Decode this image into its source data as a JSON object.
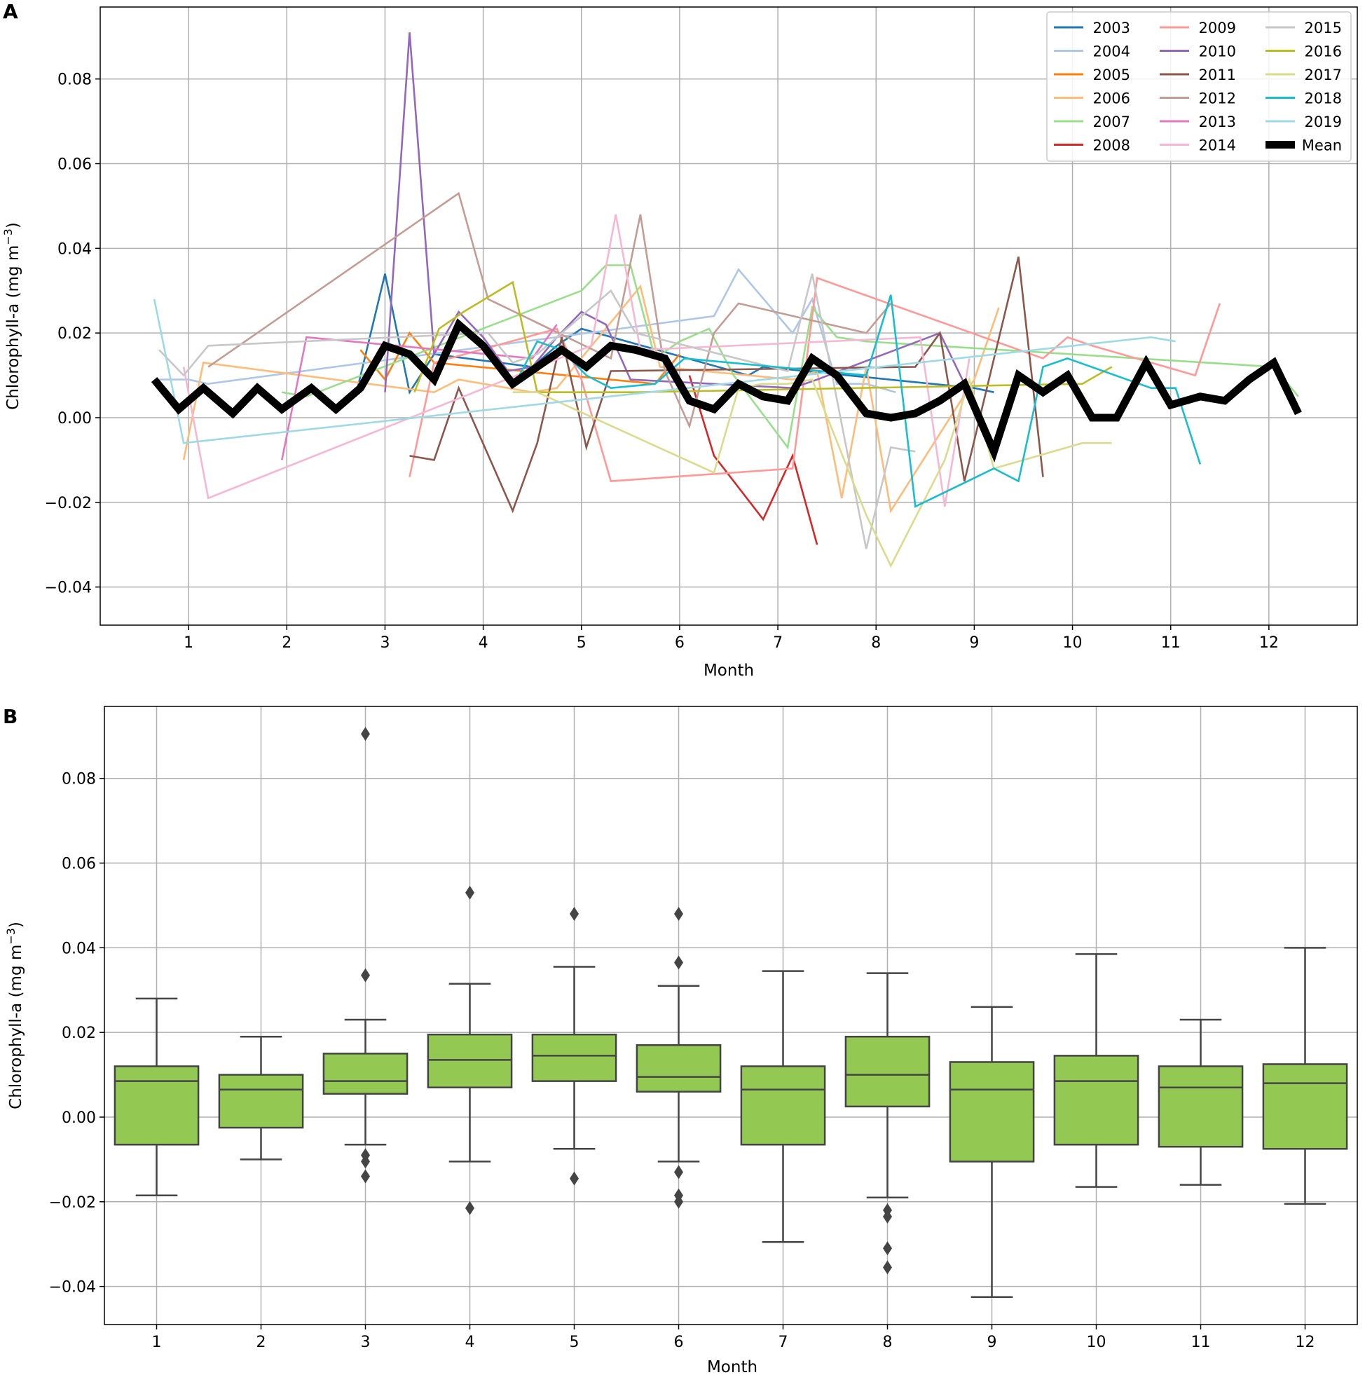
{
  "chart_data": [
    {
      "panel": "A",
      "type": "line",
      "xlabel": "Month",
      "ylabel": "Chlorophyll-a (mg m",
      "ylabel_sup": "−3",
      "ylabel_close": ")",
      "xlim": [
        0.1,
        12.9
      ],
      "ylim": [
        -0.049,
        0.097
      ],
      "xticks": [
        1,
        2,
        3,
        4,
        5,
        6,
        7,
        8,
        9,
        10,
        11,
        12
      ],
      "xtick_labels": [
        "1",
        "2",
        "3",
        "4",
        "5",
        "6",
        "7",
        "8",
        "9",
        "10",
        "11",
        "12"
      ],
      "yticks": [
        -0.04,
        -0.02,
        0.0,
        0.02,
        0.04,
        0.06,
        0.08
      ],
      "ytick_labels": [
        "−0.04",
        "−0.02",
        "0.00",
        "0.02",
        "0.04",
        "0.06",
        "0.08"
      ],
      "grid": true,
      "legend_position": "top-right",
      "legend_columns": 3,
      "series": [
        {
          "name": "2003",
          "color": "#1f77b4",
          "x": [
            2.7,
            3.0,
            3.25,
            3.5,
            4.5,
            4.75,
            5.0,
            6.7,
            6.85,
            9.0,
            9.2
          ],
          "y": [
            0.005,
            0.034,
            0.006,
            0.015,
            0.012,
            0.017,
            0.021,
            0.01,
            0.012,
            0.007,
            0.006
          ]
        },
        {
          "name": "2004",
          "color": "#aec7e8",
          "x": [
            0.7,
            1.0,
            1.2,
            6.35,
            6.6,
            7.15,
            7.35,
            7.6,
            7.9,
            8.2
          ],
          "y": [
            0.009,
            0.009,
            0.008,
            0.024,
            0.035,
            0.02,
            0.028,
            0.008,
            0.008,
            0.006
          ]
        },
        {
          "name": "2005",
          "color": "#ff7f0e",
          "x": [
            2.75,
            3.0,
            3.25,
            3.5,
            5.75,
            6.0
          ],
          "y": [
            0.016,
            0.009,
            0.02,
            0.013,
            0.008,
            0.015
          ]
        },
        {
          "name": "2006",
          "color": "#ffbb78",
          "x": [
            0.95,
            1.15,
            3.5,
            3.75,
            4.5,
            4.75,
            5.6,
            5.8,
            7.15,
            7.4,
            7.65,
            7.9,
            8.15,
            9.0,
            9.25
          ],
          "y": [
            -0.01,
            0.013,
            0.006,
            0.009,
            0.006,
            0.007,
            0.031,
            0.012,
            0.009,
            0.011,
            -0.019,
            0.012,
            -0.022,
            0.009,
            0.026
          ]
        },
        {
          "name": "2007",
          "color": "#98df8a",
          "x": [
            1.95,
            2.2,
            5.0,
            5.25,
            5.5,
            5.75,
            6.0,
            6.3,
            6.55,
            7.1,
            7.35,
            7.6,
            7.9,
            12.05,
            12.3
          ],
          "y": [
            0.006,
            0.005,
            0.03,
            0.036,
            0.036,
            0.014,
            0.018,
            0.021,
            0.01,
            -0.007,
            0.026,
            0.019,
            0.018,
            0.012,
            0.005
          ]
        },
        {
          "name": "2008",
          "color": "#d62728",
          "x": [
            6.1,
            6.35,
            6.85,
            7.15,
            7.4
          ],
          "y": [
            0.01,
            -0.009,
            -0.024,
            -0.009,
            -0.03
          ]
        },
        {
          "name": "2009",
          "color": "#ff9896",
          "x": [
            3.25,
            3.5,
            4.75,
            5.0,
            5.3,
            7.15,
            7.4,
            9.7,
            9.95,
            10.2,
            11.25,
            11.5
          ],
          "y": [
            -0.014,
            0.013,
            0.021,
            0.009,
            -0.015,
            -0.012,
            0.033,
            0.014,
            0.019,
            0.017,
            0.01,
            0.027
          ]
        },
        {
          "name": "2010",
          "color": "#9467bd",
          "x": [
            3.0,
            3.25,
            3.5,
            3.75,
            4.0,
            4.25,
            4.5,
            4.75,
            5.0,
            5.25,
            5.5,
            7.15,
            7.4,
            8.65,
            8.9
          ],
          "y": [
            0.006,
            0.091,
            0.015,
            0.025,
            0.019,
            0.011,
            0.012,
            0.019,
            0.025,
            0.022,
            0.009,
            0.007,
            0.009,
            0.02,
            0.008
          ]
        },
        {
          "name": "2011",
          "color": "#8c564b",
          "x": [
            3.25,
            3.5,
            3.75,
            4.3,
            4.55,
            4.8,
            5.05,
            5.3,
            8.4,
            8.65,
            8.9,
            9.45,
            9.7
          ],
          "y": [
            -0.009,
            -0.01,
            0.007,
            -0.022,
            -0.006,
            0.019,
            -0.007,
            0.011,
            0.012,
            0.02,
            -0.015,
            0.038,
            -0.014
          ]
        },
        {
          "name": "2012",
          "color": "#c49c94",
          "x": [
            1.2,
            1.45,
            3.75,
            4.05,
            5.3,
            5.6,
            5.85,
            6.1,
            6.35,
            6.6,
            7.9,
            8.15
          ],
          "y": [
            0.012,
            0.016,
            0.053,
            0.028,
            0.014,
            0.048,
            0.011,
            -0.002,
            0.02,
            0.027,
            0.02,
            0.027
          ]
        },
        {
          "name": "2013",
          "color": "#e377c2",
          "x": [
            1.95,
            2.2,
            4.5,
            4.75
          ],
          "y": [
            -0.01,
            0.019,
            0.014,
            0.022
          ]
        },
        {
          "name": "2014",
          "color": "#f7b6d2",
          "x": [
            0.95,
            1.2,
            5.1,
            5.35,
            5.6,
            8.45,
            8.7,
            8.95
          ],
          "y": [
            0.012,
            -0.019,
            0.017,
            0.048,
            0.016,
            0.019,
            -0.021,
            0.014
          ]
        },
        {
          "name": "2015",
          "color": "#c7c7c7",
          "x": [
            0.7,
            0.95,
            1.2,
            4.05,
            4.3,
            4.55,
            5.3,
            5.55,
            7.1,
            7.35,
            7.9,
            8.15,
            8.4
          ],
          "y": [
            0.016,
            0.01,
            0.017,
            0.02,
            0.013,
            0.015,
            0.03,
            0.02,
            0.011,
            0.034,
            -0.031,
            -0.007,
            -0.008
          ]
        },
        {
          "name": "2016",
          "color": "#bcbd22",
          "x": [
            3.3,
            3.55,
            3.8,
            4.3,
            4.55,
            5.05,
            5.3,
            5.55,
            10.1,
            10.4
          ],
          "y": [
            0.006,
            0.021,
            0.025,
            0.032,
            0.006,
            0.006,
            0.006,
            0.006,
            0.008,
            0.012
          ]
        },
        {
          "name": "2017",
          "color": "#dbdb8d",
          "x": [
            4.3,
            4.55,
            6.35,
            6.6,
            6.85,
            7.1,
            7.35,
            7.9,
            8.15,
            8.7,
            8.95,
            9.2,
            10.1,
            10.4
          ],
          "y": [
            0.006,
            0.006,
            -0.013,
            0.007,
            0.008,
            0.008,
            0.009,
            -0.023,
            -0.035,
            -0.01,
            0.009,
            -0.012,
            -0.006,
            -0.006
          ]
        },
        {
          "name": "2018",
          "color": "#17becf",
          "x": [
            4.3,
            4.55,
            4.8,
            5.05,
            5.3,
            5.75,
            6.05,
            7.9,
            8.15,
            8.4,
            9.2,
            9.45,
            9.7,
            9.95,
            10.8,
            11.05,
            11.3
          ],
          "y": [
            0.007,
            0.018,
            0.016,
            0.01,
            0.007,
            0.008,
            0.014,
            0.01,
            0.029,
            -0.021,
            -0.012,
            -0.015,
            0.012,
            0.014,
            0.007,
            0.007,
            -0.011
          ]
        },
        {
          "name": "2019",
          "color": "#9edae5",
          "x": [
            0.65,
            0.95,
            10.8,
            11.05
          ],
          "y": [
            0.028,
            -0.006,
            0.019,
            0.018
          ]
        },
        {
          "name": "Mean",
          "color": "#000000",
          "mean": true,
          "x": [
            0.65,
            0.9,
            1.15,
            1.45,
            1.7,
            1.95,
            2.25,
            2.5,
            2.75,
            3.0,
            3.25,
            3.5,
            3.75,
            4.0,
            4.3,
            4.55,
            4.8,
            5.05,
            5.3,
            5.55,
            5.85,
            6.1,
            6.35,
            6.6,
            6.85,
            7.1,
            7.35,
            7.6,
            7.9,
            8.15,
            8.4,
            8.65,
            8.9,
            9.2,
            9.45,
            9.7,
            9.95,
            10.2,
            10.45,
            10.75,
            11.0,
            11.3,
            11.55,
            11.8,
            12.05,
            12.3
          ],
          "y": [
            0.009,
            0.002,
            0.007,
            0.001,
            0.007,
            0.002,
            0.007,
            0.002,
            0.007,
            0.017,
            0.015,
            0.009,
            0.022,
            0.017,
            0.008,
            0.012,
            0.016,
            0.012,
            0.017,
            0.016,
            0.014,
            0.004,
            0.002,
            0.008,
            0.005,
            0.004,
            0.014,
            0.01,
            0.001,
            0.0,
            0.001,
            0.004,
            0.008,
            -0.008,
            0.01,
            0.006,
            0.01,
            0.0,
            0.0,
            0.013,
            0.003,
            0.005,
            0.004,
            0.009,
            0.013,
            0.001
          ]
        }
      ]
    },
    {
      "panel": "B",
      "type": "box",
      "xlabel": "Month",
      "ylabel": "Chlorophyll-a (mg m",
      "ylabel_sup": "−3",
      "ylabel_close": ")",
      "ylim": [
        -0.049,
        0.097
      ],
      "yticks": [
        -0.04,
        -0.02,
        0.0,
        0.02,
        0.04,
        0.06,
        0.08
      ],
      "ytick_labels": [
        "−0.04",
        "−0.02",
        "0.00",
        "0.02",
        "0.04",
        "0.06",
        "0.08"
      ],
      "grid": true,
      "box_color": "#93c953",
      "edge_color": "#444444",
      "categories": [
        "1",
        "2",
        "3",
        "4",
        "5",
        "6",
        "7",
        "8",
        "9",
        "10",
        "11",
        "12"
      ],
      "boxes": [
        {
          "whislo": -0.0185,
          "q1": -0.0065,
          "med": 0.0085,
          "q3": 0.012,
          "whishi": 0.028,
          "fliers": []
        },
        {
          "whislo": -0.01,
          "q1": -0.0025,
          "med": 0.0065,
          "q3": 0.01,
          "whishi": 0.019,
          "fliers": []
        },
        {
          "whislo": -0.0065,
          "q1": 0.0055,
          "med": 0.0085,
          "q3": 0.015,
          "whishi": 0.023,
          "fliers": [
            0.0905,
            0.0335,
            -0.009,
            -0.0105,
            -0.014
          ]
        },
        {
          "whislo": -0.0105,
          "q1": 0.007,
          "med": 0.0135,
          "q3": 0.0195,
          "whishi": 0.0315,
          "fliers": [
            0.053,
            -0.0215
          ]
        },
        {
          "whislo": -0.0075,
          "q1": 0.0085,
          "med": 0.0145,
          "q3": 0.0195,
          "whishi": 0.0355,
          "fliers": [
            0.048,
            -0.0145
          ]
        },
        {
          "whislo": -0.0105,
          "q1": 0.006,
          "med": 0.0095,
          "q3": 0.017,
          "whishi": 0.031,
          "fliers": [
            0.048,
            0.0365,
            -0.013,
            -0.0185,
            -0.02
          ]
        },
        {
          "whislo": -0.0295,
          "q1": -0.0065,
          "med": 0.0065,
          "q3": 0.012,
          "whishi": 0.0345,
          "fliers": []
        },
        {
          "whislo": -0.019,
          "q1": 0.0025,
          "med": 0.01,
          "q3": 0.019,
          "whishi": 0.034,
          "fliers": [
            -0.022,
            -0.0235,
            -0.031,
            -0.0355
          ]
        },
        {
          "whislo": -0.0425,
          "q1": -0.0105,
          "med": 0.0065,
          "q3": 0.013,
          "whishi": 0.026,
          "fliers": []
        },
        {
          "whislo": -0.0165,
          "q1": -0.0065,
          "med": 0.0085,
          "q3": 0.0145,
          "whishi": 0.0385,
          "fliers": []
        },
        {
          "whislo": -0.016,
          "q1": -0.007,
          "med": 0.007,
          "q3": 0.012,
          "whishi": 0.023,
          "fliers": []
        },
        {
          "whislo": -0.0205,
          "q1": -0.0075,
          "med": 0.008,
          "q3": 0.0125,
          "whishi": 0.04,
          "fliers": []
        }
      ]
    }
  ]
}
